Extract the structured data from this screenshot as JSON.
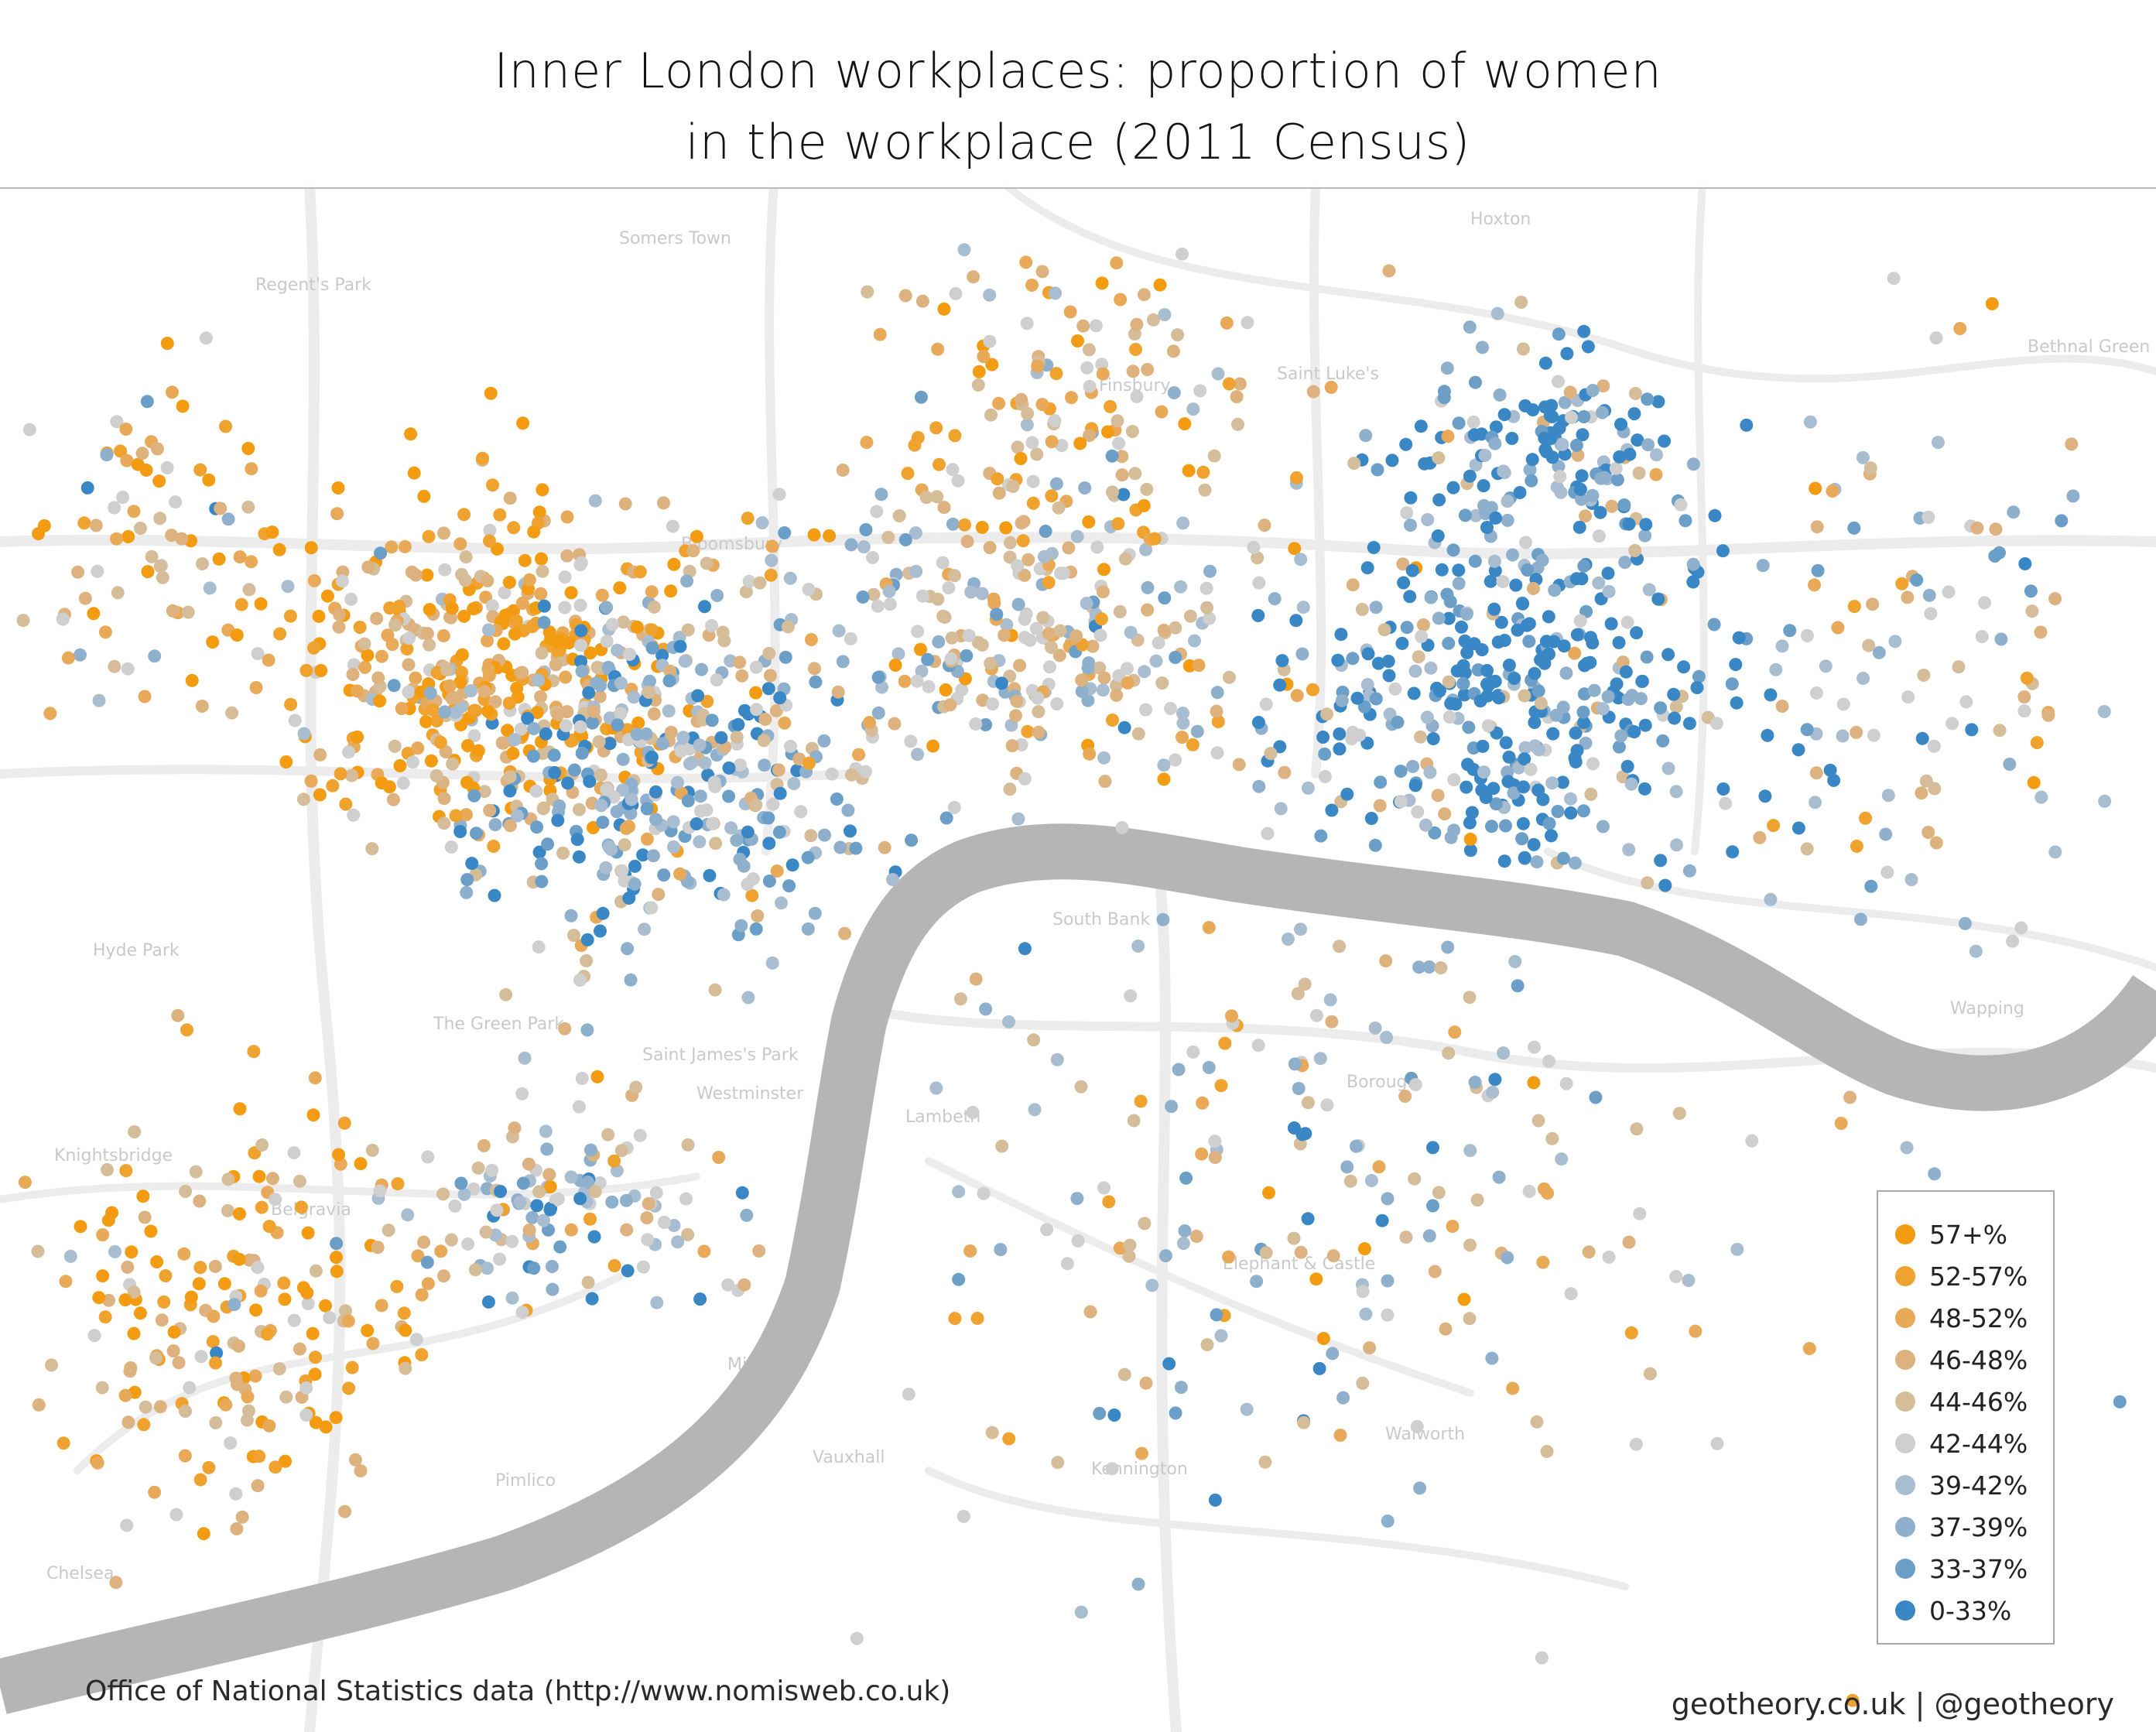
{
  "title": {
    "line1": "Inner London workplaces: proportion of women",
    "line2": "in the workplace (2011 Census)"
  },
  "source": "Office of National Statistics data (http://www.nomisweb.co.uk)",
  "credit": "geotheory.co.uk | @geotheory",
  "legend": [
    {
      "label": "57+%",
      "color": "#f39c12"
    },
    {
      "label": "52-57%",
      "color": "#f0a22e"
    },
    {
      "label": "48-52%",
      "color": "#e8aa58"
    },
    {
      "label": "46-48%",
      "color": "#deb27e"
    },
    {
      "label": "44-46%",
      "color": "#d6bd9a"
    },
    {
      "label": "42-44%",
      "color": "#cfcfcf"
    },
    {
      "label": "39-42%",
      "color": "#a9bdd0"
    },
    {
      "label": "37-39%",
      "color": "#8fb0cc"
    },
    {
      "label": "33-37%",
      "color": "#6b9fc8"
    },
    {
      "label": "0-33%",
      "color": "#3a87c6"
    }
  ],
  "map": {
    "colors": {
      "river": "#b5b5b5",
      "roads": "#ececec",
      "labels": "#cccccc"
    },
    "place_labels": [
      "Somers Town",
      "Regent's Park",
      "Hoxton",
      "Saint Luke's",
      "Bloomsbury",
      "Finsbury",
      "Hyde Park",
      "The Green Park",
      "Saint James's Park",
      "Westminster",
      "Lambeth",
      "South Bank",
      "Borough",
      "Elephant & Castle",
      "Walworth",
      "Kennington",
      "Pimlico",
      "Chelsea",
      "Belgravia",
      "Knightsbridge",
      "Wapping",
      "Bethnal Green",
      "Millbank",
      "Vauxhall"
    ]
  }
}
